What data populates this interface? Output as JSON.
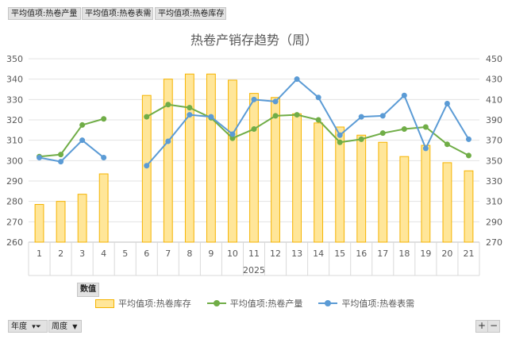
{
  "pivot_fields": [
    "平均值项:热卷产量",
    "平均值项:热卷表需",
    "平均值项:热卷库存"
  ],
  "values_button": "数值",
  "bottom_fields": [
    {
      "label": "年度",
      "icon": "filter-icon"
    },
    {
      "label": "周度",
      "icon": "dropdown-icon"
    }
  ],
  "zoom": {
    "plus": "+",
    "minus": "−"
  },
  "colors": {
    "inventory_fill": "#ffe699",
    "inventory_border": "#f5b300",
    "production": "#70ad47",
    "demand": "#5b9bd5"
  },
  "chart_data": {
    "type": "bar",
    "title": "热卷产销存趋势（周）",
    "group_label": "2025",
    "categories": [
      "1",
      "2",
      "3",
      "4",
      "5",
      "6",
      "7",
      "8",
      "9",
      "10",
      "11",
      "12",
      "13",
      "14",
      "15",
      "16",
      "17",
      "18",
      "19",
      "20",
      "21"
    ],
    "left_axis": {
      "min": 260,
      "max": 350,
      "step": 10
    },
    "right_axis": {
      "min": 270,
      "max": 450,
      "step": 20
    },
    "grid": true,
    "legend_position": "bottom",
    "series": [
      {
        "name": "平均值项:热卷库存",
        "type": "bar",
        "axis": "left",
        "values": [
          278.5,
          280,
          283.5,
          293.5,
          null,
          332,
          340,
          342.5,
          342.5,
          339.5,
          333,
          331,
          323,
          318.5,
          316.5,
          312.5,
          309,
          302,
          307.5,
          299,
          295
        ]
      },
      {
        "name": "平均值项:热卷产量",
        "type": "line",
        "axis": "right",
        "values": [
          354,
          356,
          385,
          391,
          null,
          393,
          405,
          402,
          392,
          372,
          381,
          394,
          395,
          390,
          368,
          371,
          377,
          381,
          383,
          366,
          355
        ]
      },
      {
        "name": "平均值项:热卷表需",
        "type": "line",
        "axis": "right",
        "values": [
          353,
          349,
          370,
          353,
          null,
          345,
          369,
          395,
          393,
          376,
          410,
          408,
          430,
          412,
          375,
          393,
          394,
          414,
          362,
          406,
          371
        ]
      }
    ]
  }
}
